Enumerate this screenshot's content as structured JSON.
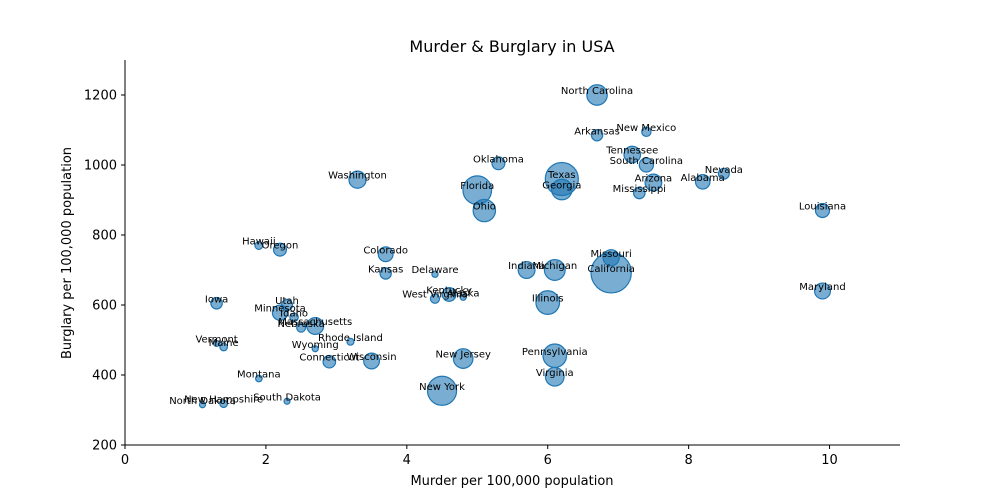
{
  "chart_data": {
    "type": "scatter",
    "title": "Murder & Burglary in USA",
    "xlabel": "Murder per 100,000 population",
    "ylabel": "Burglary per 100,000 population",
    "xlim": [
      0,
      11
    ],
    "ylim": [
      200,
      1300
    ],
    "x_ticks": [
      0,
      2,
      4,
      6,
      8,
      10
    ],
    "y_ticks": [
      200,
      400,
      600,
      800,
      1000,
      1200
    ],
    "grid": false,
    "size_encoding": "bubble area ~ population",
    "points": [
      {
        "label": "North Carolina",
        "x": 6.7,
        "y": 1200,
        "size": 9.6
      },
      {
        "label": "Arkansas",
        "x": 6.7,
        "y": 1085,
        "size": 2.9
      },
      {
        "label": "New Mexico",
        "x": 7.4,
        "y": 1095,
        "size": 2.0
      },
      {
        "label": "Tennessee",
        "x": 7.2,
        "y": 1030,
        "size": 6.3
      },
      {
        "label": "South Carolina",
        "x": 7.4,
        "y": 1000,
        "size": 4.6
      },
      {
        "label": "Oklahoma",
        "x": 5.3,
        "y": 1005,
        "size": 3.8
      },
      {
        "label": "Texas",
        "x": 6.2,
        "y": 960,
        "size": 25.1
      },
      {
        "label": "Nevada",
        "x": 8.5,
        "y": 975,
        "size": 2.7
      },
      {
        "label": "Alabama",
        "x": 8.2,
        "y": 952,
        "size": 4.8
      },
      {
        "label": "Arizona",
        "x": 7.5,
        "y": 950,
        "size": 6.4
      },
      {
        "label": "Washington",
        "x": 3.3,
        "y": 958,
        "size": 6.7
      },
      {
        "label": "Georgia",
        "x": 6.2,
        "y": 930,
        "size": 9.7
      },
      {
        "label": "Florida",
        "x": 5.0,
        "y": 928,
        "size": 18.8
      },
      {
        "label": "Mississippi",
        "x": 7.3,
        "y": 920,
        "size": 3.0
      },
      {
        "label": "Ohio",
        "x": 5.1,
        "y": 870,
        "size": 11.5
      },
      {
        "label": "Louisiana",
        "x": 9.9,
        "y": 870,
        "size": 4.5
      },
      {
        "label": "Hawaii",
        "x": 1.9,
        "y": 770,
        "size": 1.4
      },
      {
        "label": "Oregon",
        "x": 2.2,
        "y": 758,
        "size": 3.8
      },
      {
        "label": "Colorado",
        "x": 3.7,
        "y": 745,
        "size": 5.0
      },
      {
        "label": "Missouri",
        "x": 6.9,
        "y": 735,
        "size": 6.0
      },
      {
        "label": "Indiana",
        "x": 5.7,
        "y": 700,
        "size": 6.5
      },
      {
        "label": "Michigan",
        "x": 6.1,
        "y": 700,
        "size": 9.9
      },
      {
        "label": "California",
        "x": 6.9,
        "y": 692,
        "size": 37.3
      },
      {
        "label": "Kansas",
        "x": 3.7,
        "y": 690,
        "size": 2.9
      },
      {
        "label": "Delaware",
        "x": 4.4,
        "y": 688,
        "size": 0.9
      },
      {
        "label": "Maryland",
        "x": 9.9,
        "y": 640,
        "size": 5.8
      },
      {
        "label": "Kentucky",
        "x": 4.6,
        "y": 630,
        "size": 4.3
      },
      {
        "label": "Alaska",
        "x": 4.8,
        "y": 622,
        "size": 0.7
      },
      {
        "label": "West Virginia",
        "x": 4.4,
        "y": 618,
        "size": 1.9
      },
      {
        "label": "Illinois",
        "x": 6.0,
        "y": 607,
        "size": 12.8
      },
      {
        "label": "Iowa",
        "x": 1.3,
        "y": 605,
        "size": 3.0
      },
      {
        "label": "Utah",
        "x": 2.3,
        "y": 600,
        "size": 2.8
      },
      {
        "label": "Minnesota",
        "x": 2.2,
        "y": 578,
        "size": 5.3
      },
      {
        "label": "Idaho",
        "x": 2.4,
        "y": 565,
        "size": 1.6
      },
      {
        "label": "Massachusetts",
        "x": 2.7,
        "y": 540,
        "size": 6.5
      },
      {
        "label": "Nebraska",
        "x": 2.5,
        "y": 535,
        "size": 1.8
      },
      {
        "label": "Rhode Island",
        "x": 3.2,
        "y": 495,
        "size": 1.1
      },
      {
        "label": "Vermont",
        "x": 1.3,
        "y": 490,
        "size": 0.6
      },
      {
        "label": "Maine",
        "x": 1.4,
        "y": 480,
        "size": 1.3
      },
      {
        "label": "Wyoming",
        "x": 2.7,
        "y": 475,
        "size": 0.6
      },
      {
        "label": "Pennsylvania",
        "x": 6.1,
        "y": 455,
        "size": 12.7
      },
      {
        "label": "New Jersey",
        "x": 4.8,
        "y": 447,
        "size": 8.8
      },
      {
        "label": "Wisconsin",
        "x": 3.5,
        "y": 440,
        "size": 5.7
      },
      {
        "label": "Connecticut",
        "x": 2.9,
        "y": 438,
        "size": 3.6
      },
      {
        "label": "Virginia",
        "x": 6.1,
        "y": 395,
        "size": 8.0
      },
      {
        "label": "Montana",
        "x": 1.9,
        "y": 390,
        "size": 1.0
      },
      {
        "label": "New York",
        "x": 4.5,
        "y": 355,
        "size": 19.4
      },
      {
        "label": "South Dakota",
        "x": 2.3,
        "y": 325,
        "size": 0.8
      },
      {
        "label": "New Hampshire",
        "x": 1.4,
        "y": 318,
        "size": 1.3
      },
      {
        "label": "North Dakota",
        "x": 1.1,
        "y": 315,
        "size": 0.7
      }
    ]
  }
}
